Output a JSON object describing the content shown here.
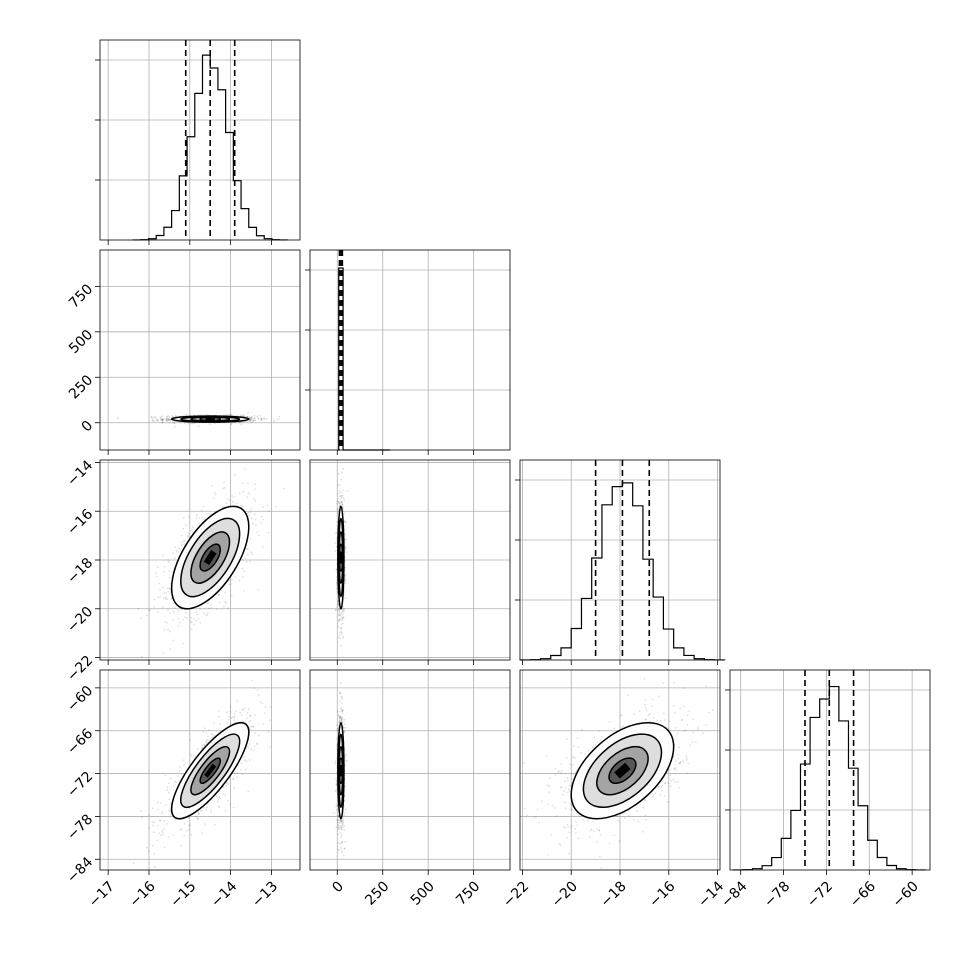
{
  "chart_data": {
    "type": "corner",
    "params": [
      {
        "range": [
          -17.2,
          -12.3
        ],
        "ticks": [
          -17,
          -16,
          -15,
          -14,
          -13
        ],
        "mean": -14.5,
        "sd": 0.45,
        "q": [
          -15.1,
          -14.5,
          -13.9
        ],
        "hist_scale": 1.0
      },
      {
        "range": [
          -150,
          950
        ],
        "ticks": [
          0,
          250,
          500,
          750
        ],
        "mean": 20,
        "sd": 8,
        "q": [
          12,
          20,
          28
        ],
        "hist_scale": 1.0
      },
      {
        "range": [
          -22.1,
          -13.9
        ],
        "ticks": [
          -22,
          -20,
          -18,
          -16,
          -14
        ],
        "mean": -17.9,
        "sd": 1.0,
        "q": [
          -19.0,
          -17.9,
          -16.8
        ],
        "hist_scale": 1.0
      },
      {
        "range": [
          -85.5,
          -57.5
        ],
        "ticks": [
          -84,
          -78,
          -72,
          -66,
          -60
        ],
        "mean": -71.6,
        "sd": 3.2,
        "q": [
          -75.0,
          -71.6,
          -68.2
        ],
        "hist_scale": 1.0
      }
    ],
    "y_axis_ticks": {
      "row1": [
        0,
        250,
        500,
        750
      ],
      "row2": [
        -22,
        -20,
        -18,
        -16,
        -14
      ],
      "row3": [
        -84,
        -78,
        -72,
        -66,
        -60
      ]
    },
    "correlations": [
      [
        1,
        0,
        0.6,
        0.8
      ],
      [
        0,
        1,
        0,
        0
      ],
      [
        0.6,
        0,
        1,
        0.5
      ],
      [
        0.8,
        0,
        0.5,
        1
      ]
    ],
    "grid": true,
    "title": "",
    "xlabel": "",
    "ylabel": ""
  }
}
